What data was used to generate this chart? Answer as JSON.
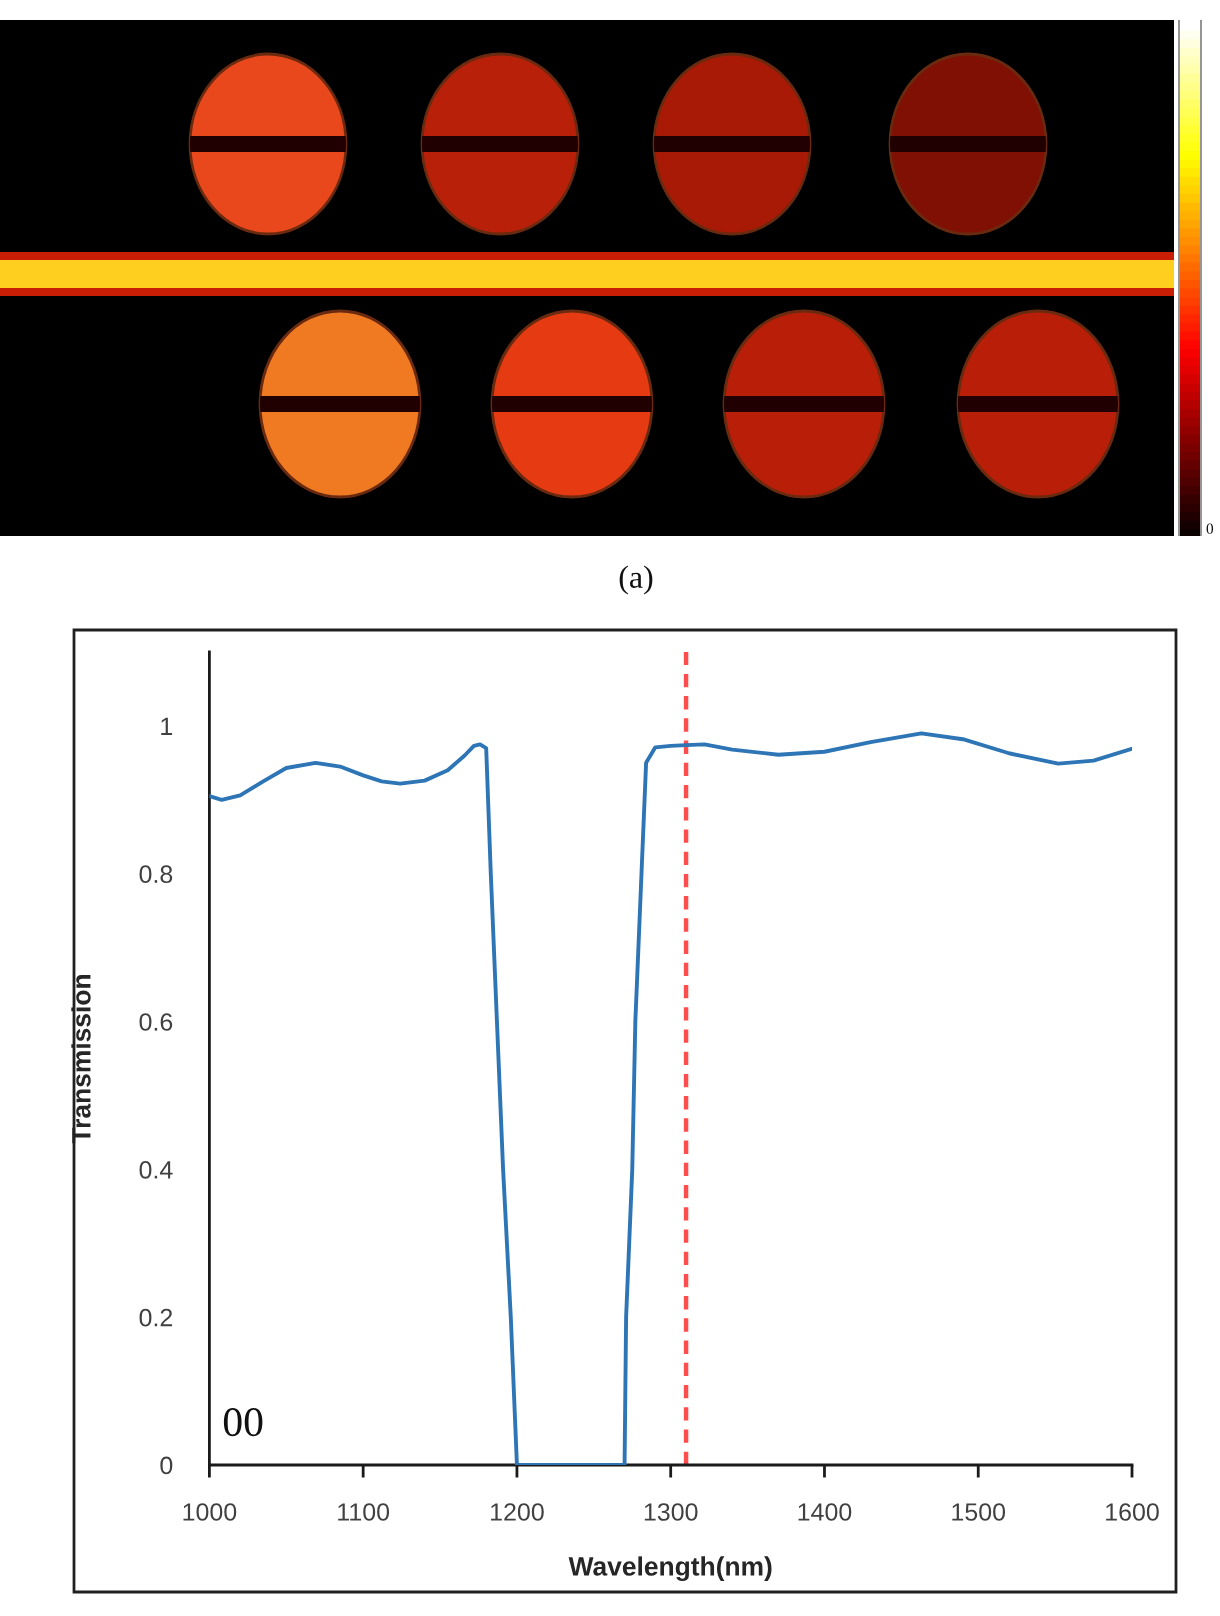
{
  "chart_data": {
    "type": "line",
    "xlabel": "Wavelength(nm)",
    "ylabel": "Transmission",
    "x": [
      1000,
      1008,
      1020,
      1035,
      1050,
      1069,
      1085,
      1100,
      1112,
      1124,
      1140,
      1155,
      1166,
      1172,
      1176,
      1180,
      1183,
      1187,
      1191,
      1196,
      1200,
      1220,
      1240,
      1260,
      1270,
      1271,
      1275,
      1277,
      1281,
      1284,
      1290,
      1300,
      1310,
      1322,
      1340,
      1370,
      1400,
      1430,
      1463,
      1490,
      1520,
      1552,
      1575,
      1600
    ],
    "series": [
      {
        "color": "#2e75b6",
        "values": [
          0.905,
          0.9,
          0.906,
          0.925,
          0.943,
          0.95,
          0.945,
          0.933,
          0.925,
          0.922,
          0.926,
          0.94,
          0.96,
          0.973,
          0.975,
          0.97,
          0.8,
          0.6,
          0.4,
          0.2,
          0,
          0,
          0,
          0,
          0,
          0.2,
          0.4,
          0.6,
          0.8,
          0.95,
          0.971,
          0.973,
          0.974,
          0.975,
          0.968,
          0.961,
          0.965,
          0.978,
          0.99,
          0.982,
          0.963,
          0.949,
          0.953,
          0.969
        ]
      }
    ],
    "xlim": [
      1000,
      1600
    ],
    "xticks": [
      1000,
      1100,
      1200,
      1300,
      1400,
      1500,
      1600
    ],
    "ylim": [
      0,
      1.1
    ],
    "yticks": [
      0,
      0.2,
      0.4,
      0.6,
      0.8,
      1
    ],
    "ref_lines": [
      {
        "axis": "x",
        "value": 1310,
        "color": "#ff4d4d",
        "line_style": "dashed"
      }
    ],
    "line_style": "solid",
    "annotations": [
      "(a)",
      "00",
      "0"
    ]
  }
}
